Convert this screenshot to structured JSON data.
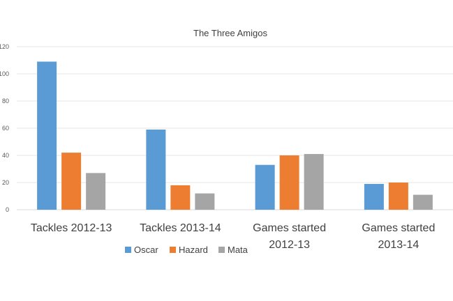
{
  "chart_data": {
    "type": "bar",
    "title": "The Three Amigos",
    "categories": [
      [
        "Tackles 2012-13"
      ],
      [
        "Tackles 2013-14"
      ],
      [
        "Games started",
        "2012-13"
      ],
      [
        "Games started",
        "2013-14"
      ]
    ],
    "series": [
      {
        "name": "Oscar",
        "color": "#5b9bd5",
        "values": [
          109,
          59,
          33,
          19
        ]
      },
      {
        "name": "Hazard",
        "color": "#ed7d31",
        "values": [
          42,
          18,
          40,
          20
        ]
      },
      {
        "name": "Mata",
        "color": "#a5a5a5",
        "values": [
          27,
          12,
          41,
          11
        ]
      }
    ],
    "ylim": [
      0,
      120
    ],
    "yticks": [
      0,
      20,
      40,
      60,
      80,
      100,
      120
    ],
    "grid": true,
    "legend": "bottom"
  }
}
